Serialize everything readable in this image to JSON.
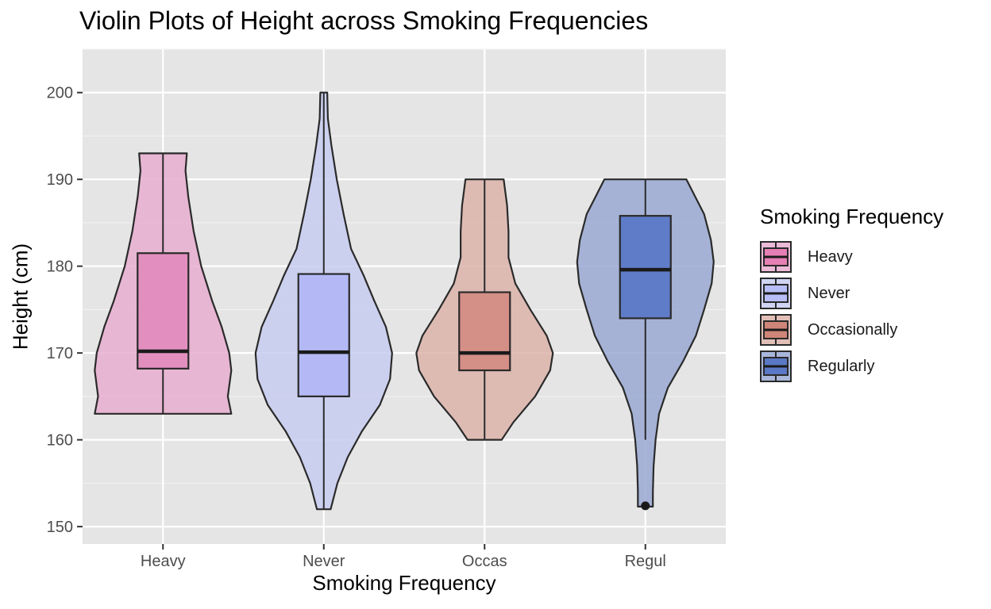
{
  "chart_data": {
    "type": "violin",
    "title": "Violin Plots of Height across Smoking Frequencies",
    "xlabel": "Smoking Frequency",
    "ylabel": "Height (cm)",
    "ylim": [
      148,
      205
    ],
    "yticks": [
      150,
      160,
      170,
      180,
      190,
      200
    ],
    "grid": true,
    "legend_title": "Smoking Frequency",
    "legend_position": "right",
    "categories": [
      "Heavy",
      "Never",
      "Occas",
      "Regul"
    ],
    "series": [
      {
        "name": "Heavy",
        "tick_label": "Heavy",
        "fill": "#e8aed0",
        "box_fill": "#e28fbf",
        "legend_fill": "#e57fb4",
        "box": {
          "q1": 168.2,
          "median": 170.2,
          "q3": 181.5,
          "whisker_low": 163.0,
          "whisker_high": 193.0
        },
        "outliers": [],
        "density": [
          [
            163,
            1.0
          ],
          [
            165,
            0.95
          ],
          [
            168,
            1.0
          ],
          [
            170,
            0.97
          ],
          [
            173,
            0.86
          ],
          [
            176,
            0.72
          ],
          [
            180,
            0.56
          ],
          [
            184,
            0.45
          ],
          [
            188,
            0.37
          ],
          [
            191,
            0.33
          ],
          [
            193,
            0.35
          ]
        ]
      },
      {
        "name": "Never",
        "tick_label": "Never",
        "fill": "#c8cdf1",
        "box_fill": "#b4b9f6",
        "legend_fill": "#b8bdf7",
        "box": {
          "q1": 165.0,
          "median": 170.1,
          "q3": 179.1,
          "whisker_low": 152.0,
          "whisker_high": 200.0
        },
        "outliers": [],
        "density": [
          [
            152,
            0.1
          ],
          [
            155,
            0.2
          ],
          [
            158,
            0.35
          ],
          [
            161,
            0.56
          ],
          [
            164,
            0.82
          ],
          [
            167,
            0.97
          ],
          [
            170,
            1.0
          ],
          [
            173,
            0.91
          ],
          [
            176,
            0.74
          ],
          [
            179,
            0.58
          ],
          [
            182,
            0.4
          ],
          [
            186,
            0.29
          ],
          [
            190,
            0.19
          ],
          [
            194,
            0.11
          ],
          [
            197,
            0.06
          ],
          [
            200,
            0.05
          ]
        ]
      },
      {
        "name": "Occasionally",
        "tick_label": "Occas",
        "fill": "#dcb4aa",
        "box_fill": "#d48f86",
        "legend_fill": "#cf8578",
        "box": {
          "q1": 168.0,
          "median": 170.0,
          "q3": 177.0,
          "whisker_low": 160.0,
          "whisker_high": 190.0
        },
        "outliers": [],
        "density": [
          [
            160,
            0.25
          ],
          [
            162,
            0.42
          ],
          [
            165,
            0.74
          ],
          [
            168,
            0.96
          ],
          [
            170,
            1.0
          ],
          [
            172,
            0.91
          ],
          [
            175,
            0.67
          ],
          [
            178,
            0.45
          ],
          [
            181,
            0.35
          ],
          [
            184,
            0.35
          ],
          [
            187,
            0.33
          ],
          [
            190,
            0.28
          ]
        ]
      },
      {
        "name": "Regularly",
        "tick_label": "Regul",
        "fill": "#9aa9d4",
        "box_fill": "#5f7cc8",
        "legend_fill": "#5b78c6",
        "box": {
          "q1": 174.0,
          "median": 179.6,
          "q3": 185.8,
          "whisker_low": 160.0,
          "whisker_high": 190.0
        },
        "outliers": [
          152.4
        ],
        "density": [
          [
            152.3,
            0.11
          ],
          [
            154,
            0.11
          ],
          [
            157,
            0.12
          ],
          [
            160,
            0.15
          ],
          [
            163,
            0.2
          ],
          [
            166,
            0.33
          ],
          [
            169,
            0.55
          ],
          [
            172,
            0.74
          ],
          [
            175,
            0.86
          ],
          [
            178,
            0.97
          ],
          [
            180.5,
            1.0
          ],
          [
            183,
            0.96
          ],
          [
            186,
            0.86
          ],
          [
            188,
            0.73
          ],
          [
            190,
            0.6
          ]
        ]
      }
    ]
  }
}
